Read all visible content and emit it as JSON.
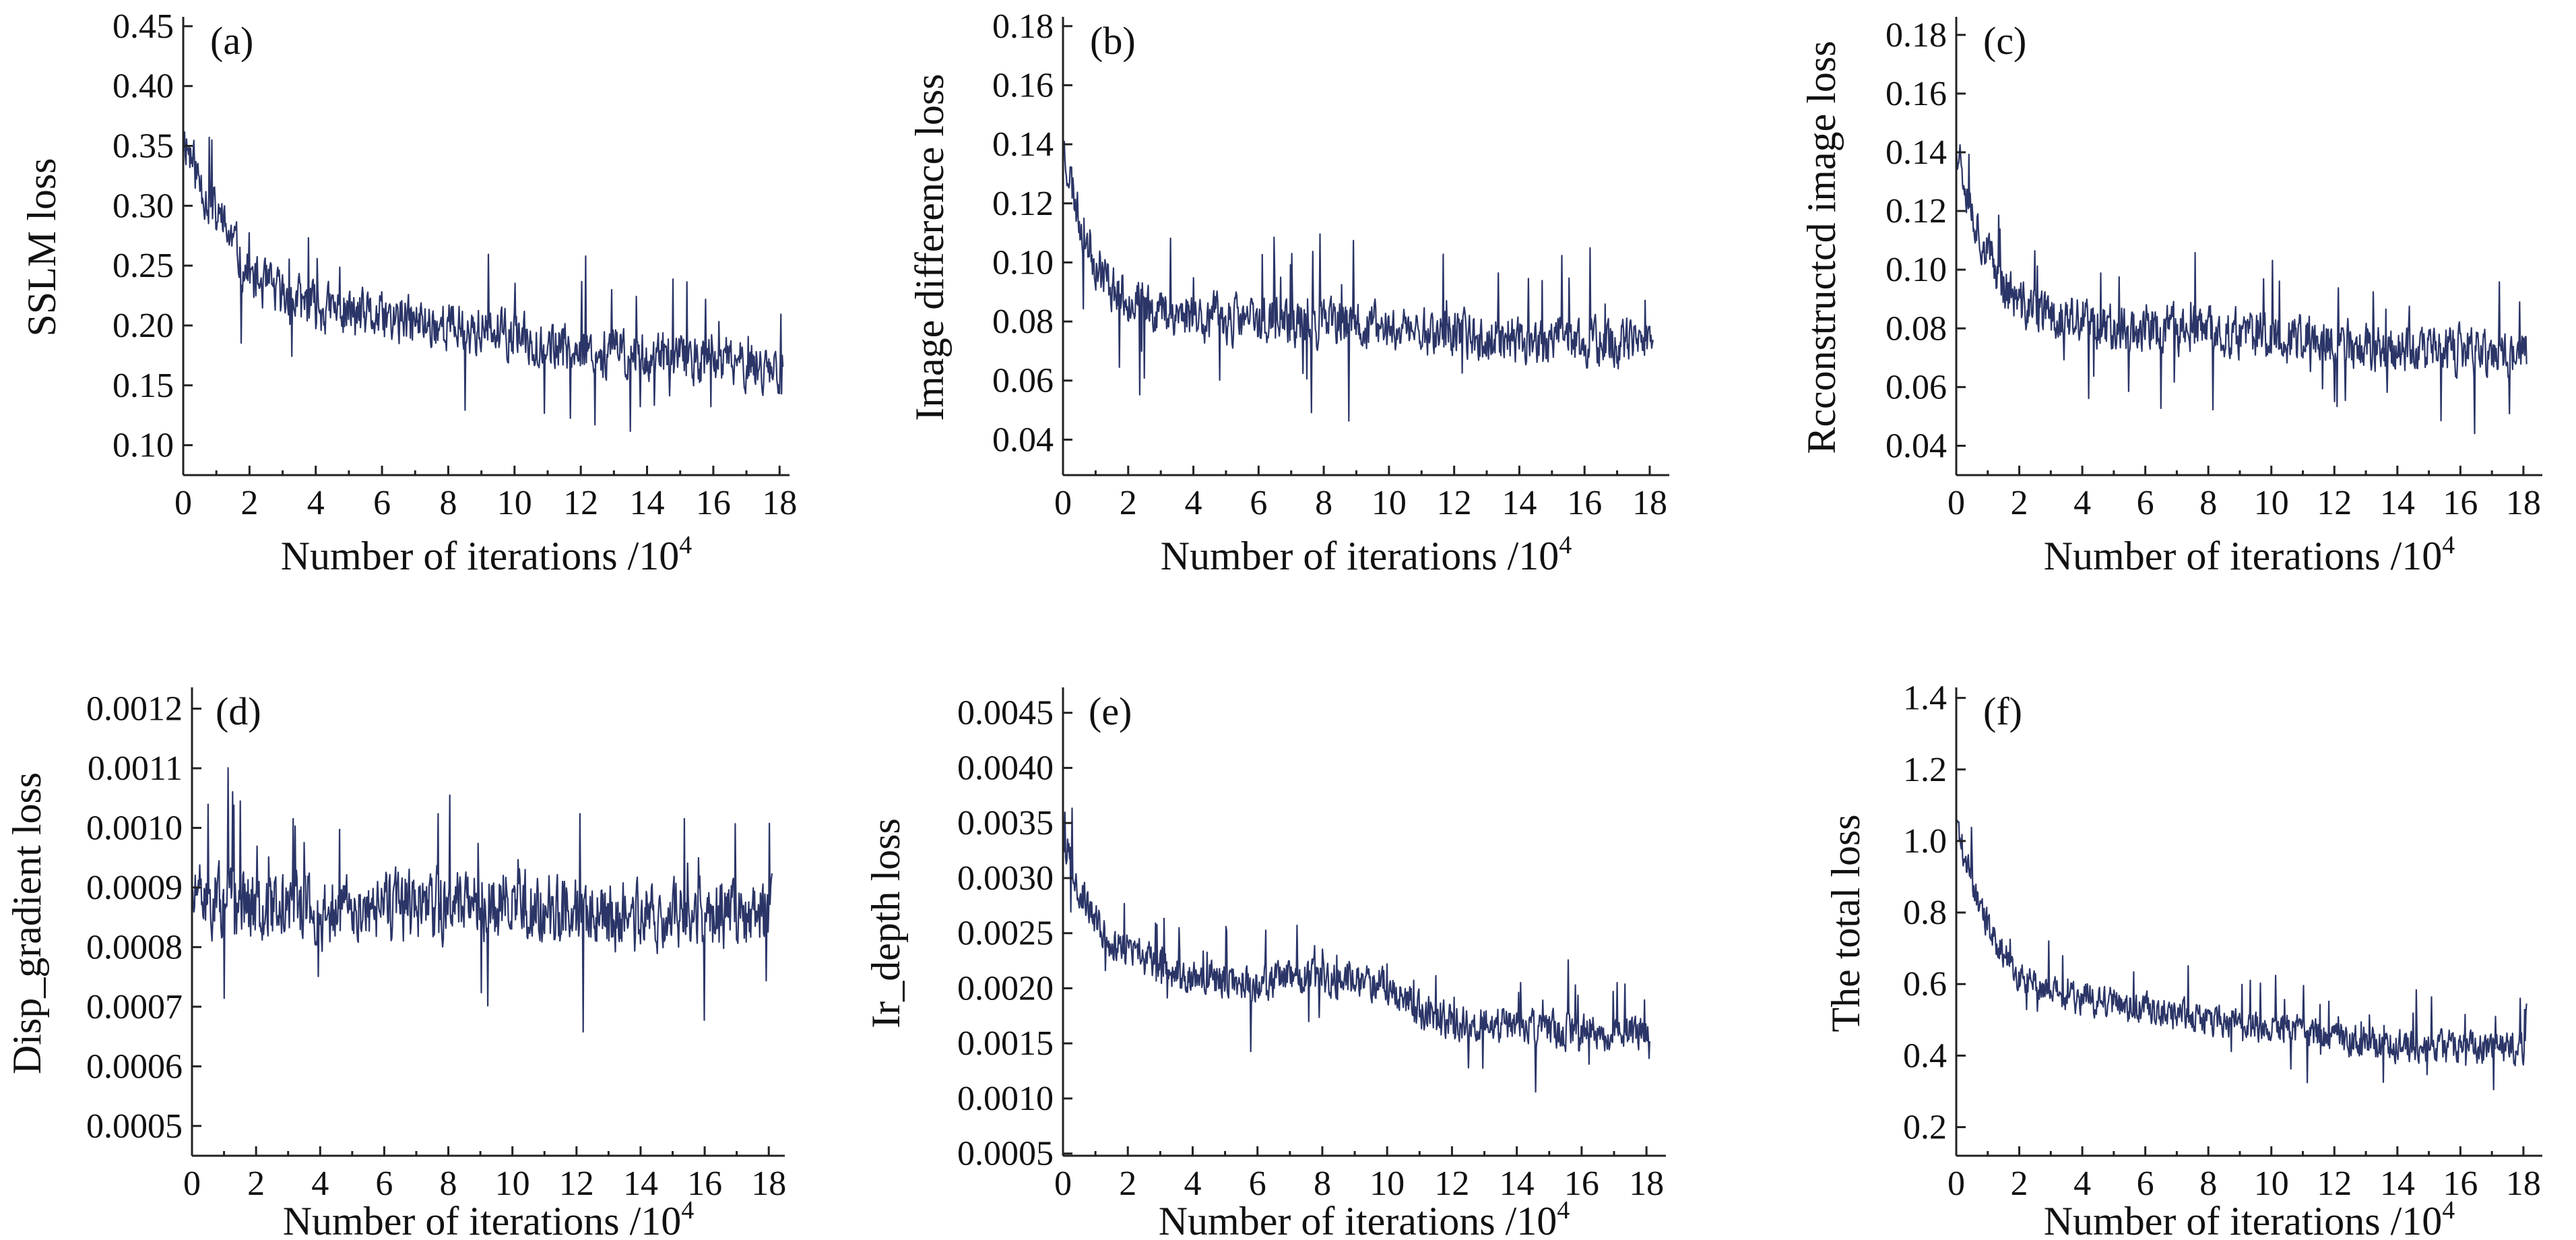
{
  "figure": {
    "common_xlabel": "Number of iterations /10",
    "xlabel_exponent": "4"
  },
  "colors": {
    "series": "#2b3567",
    "axis": "#222222",
    "highlight": "#8e97cf"
  },
  "chart_data": [
    {
      "type": "line",
      "panel": "(a)",
      "xlabel": "Number of iterations /10⁴",
      "ylabel": "SSLM loss",
      "xlim": [
        0,
        18.3
      ],
      "ylim": [
        0.075,
        0.455
      ],
      "xticks": [
        0,
        2,
        4,
        6,
        8,
        10,
        12,
        14,
        16,
        18
      ],
      "yticks": [
        0.1,
        0.15,
        0.2,
        0.25,
        0.3,
        0.35,
        0.4,
        0.45
      ],
      "ytick_labels": [
        "0.10",
        "0.15",
        "0.20",
        "0.25",
        "0.30",
        "0.35",
        "0.40",
        "0.45"
      ],
      "trend": {
        "x": [
          0,
          0.5,
          1,
          1.5,
          2,
          3,
          4,
          6,
          8,
          10,
          12,
          14,
          16,
          18
        ],
        "y": [
          0.36,
          0.32,
          0.29,
          0.27,
          0.24,
          0.225,
          0.215,
          0.205,
          0.2,
          0.19,
          0.18,
          0.175,
          0.17,
          0.165
        ]
      },
      "noise_amplitude": 0.028,
      "spike_amplitude": 0.06,
      "seed": 11,
      "x_end": 18.1
    },
    {
      "type": "line",
      "panel": "(b)",
      "xlabel": "Number of iterations /10⁴",
      "ylabel": "Image difference loss",
      "xlim": [
        0,
        18.6
      ],
      "ylim": [
        0.028,
        0.182
      ],
      "xticks": [
        0,
        2,
        4,
        6,
        8,
        10,
        12,
        14,
        16,
        18
      ],
      "yticks": [
        0.04,
        0.06,
        0.08,
        0.1,
        0.12,
        0.14,
        0.16,
        0.18
      ],
      "ytick_labels": [
        "0.04",
        "0.06",
        "0.08",
        "0.10",
        "0.12",
        "0.14",
        "0.16",
        "0.18"
      ],
      "trend": {
        "x": [
          0,
          0.5,
          1,
          1.5,
          2,
          3,
          4,
          6,
          8,
          10,
          12,
          14,
          16,
          18
        ],
        "y": [
          0.14,
          0.115,
          0.1,
          0.092,
          0.088,
          0.084,
          0.082,
          0.08,
          0.079,
          0.078,
          0.076,
          0.074,
          0.073,
          0.072
        ]
      },
      "noise_amplitude": 0.011,
      "spike_amplitude": 0.025,
      "seed": 23,
      "x_end": 18.1
    },
    {
      "type": "line",
      "panel": "(c)",
      "xlabel": "Number of iterations /10⁴",
      "ylabel": "Rcconstructcd image loss",
      "xlim": [
        0,
        18.6
      ],
      "ylim": [
        0.03,
        0.185
      ],
      "xticks": [
        0,
        2,
        4,
        6,
        8,
        10,
        12,
        14,
        16,
        18
      ],
      "yticks": [
        0.04,
        0.06,
        0.08,
        0.1,
        0.12,
        0.14,
        0.16,
        0.18
      ],
      "ytick_labels": [
        "0.04",
        "0.06",
        "0.08",
        "0.10",
        "0.12",
        "0.14",
        "0.16",
        "0.18"
      ],
      "trend": {
        "x": [
          0,
          0.5,
          1,
          1.5,
          2,
          3,
          4,
          6,
          8,
          10,
          12,
          14,
          16,
          18
        ],
        "y": [
          0.145,
          0.12,
          0.105,
          0.095,
          0.088,
          0.084,
          0.082,
          0.08,
          0.079,
          0.077,
          0.075,
          0.073,
          0.072,
          0.071
        ]
      },
      "noise_amplitude": 0.011,
      "spike_amplitude": 0.025,
      "seed": 37,
      "x_end": 18.1
    },
    {
      "type": "line",
      "panel": "(d)",
      "xlabel": "Number of iterations /10⁴",
      "ylabel": "Disp_gradient loss",
      "xlim": [
        0,
        18.5
      ],
      "ylim": [
        0.00045,
        0.00123
      ],
      "xticks": [
        0,
        2,
        4,
        6,
        8,
        10,
        12,
        14,
        16,
        18
      ],
      "yticks": [
        0.0005,
        0.0006,
        0.0007,
        0.0008,
        0.0009,
        0.001,
        0.0011,
        0.0012
      ],
      "ytick_labels": [
        "0.0005",
        "0.0006",
        "0.0007",
        "0.0008",
        "0.0009",
        "0.0010",
        "0.0011",
        "0.0012"
      ],
      "trend": {
        "x": [
          0,
          2,
          4,
          6,
          8,
          10,
          12,
          14,
          16,
          18
        ],
        "y": [
          0.00088,
          0.00087,
          0.00086,
          0.000865,
          0.00087,
          0.000875,
          0.00086,
          0.00085,
          0.000855,
          0.00085
        ]
      },
      "noise_amplitude": 8e-05,
      "spike_amplitude": 0.00017,
      "seed": 51,
      "x_end": 18.1
    },
    {
      "type": "line",
      "panel": "(e)",
      "xlabel": "Number of iterations /10⁴",
      "ylabel": "Ir_depth loss",
      "xlim": [
        0,
        18.6
      ],
      "ylim": [
        0.00048,
        0.0047
      ],
      "xticks": [
        0,
        2,
        4,
        6,
        8,
        10,
        12,
        14,
        16,
        18
      ],
      "yticks": [
        0.0005,
        0.001,
        0.0015,
        0.002,
        0.0025,
        0.003,
        0.0035,
        0.004,
        0.0045
      ],
      "ytick_labels": [
        "0.0005",
        "0.0010",
        "0.0015",
        "0.0020",
        "0.0025",
        "0.0030",
        "0.0035",
        "0.0040",
        "0.0045"
      ],
      "trend": {
        "x": [
          0,
          0.5,
          1,
          1.5,
          2,
          3,
          4,
          6,
          8,
          10,
          11,
          12,
          14,
          16,
          18
        ],
        "y": [
          0.0034,
          0.0029,
          0.0026,
          0.0024,
          0.00235,
          0.0022,
          0.0021,
          0.00205,
          0.0021,
          0.00205,
          0.0018,
          0.0017,
          0.00165,
          0.0016,
          0.0016
        ]
      },
      "noise_amplitude": 0.00022,
      "spike_amplitude": 0.0005,
      "seed": 67,
      "x_end": 18.1
    },
    {
      "type": "line",
      "panel": "(f)",
      "xlabel": "Number of iterations /10⁴",
      "ylabel": "The total loss",
      "xlim": [
        0,
        18.6
      ],
      "ylim": [
        0.12,
        1.42
      ],
      "xticks": [
        0,
        2,
        4,
        6,
        8,
        10,
        12,
        14,
        16,
        18
      ],
      "yticks": [
        0.2,
        0.4,
        0.6,
        0.8,
        1.0,
        1.2,
        1.4
      ],
      "ytick_labels": [
        "0.2",
        "0.4",
        "0.6",
        "0.8",
        "1.0",
        "1.2",
        "1.4"
      ],
      "trend": {
        "x": [
          0,
          0.5,
          1,
          1.5,
          2,
          3,
          4,
          6,
          8,
          10,
          12,
          14,
          16,
          18
        ],
        "y": [
          1.05,
          0.88,
          0.76,
          0.69,
          0.62,
          0.58,
          0.56,
          0.53,
          0.5,
          0.48,
          0.45,
          0.43,
          0.42,
          0.42
        ]
      },
      "noise_amplitude": 0.06,
      "spike_amplitude": 0.14,
      "seed": 89,
      "x_end": 18.1
    }
  ]
}
